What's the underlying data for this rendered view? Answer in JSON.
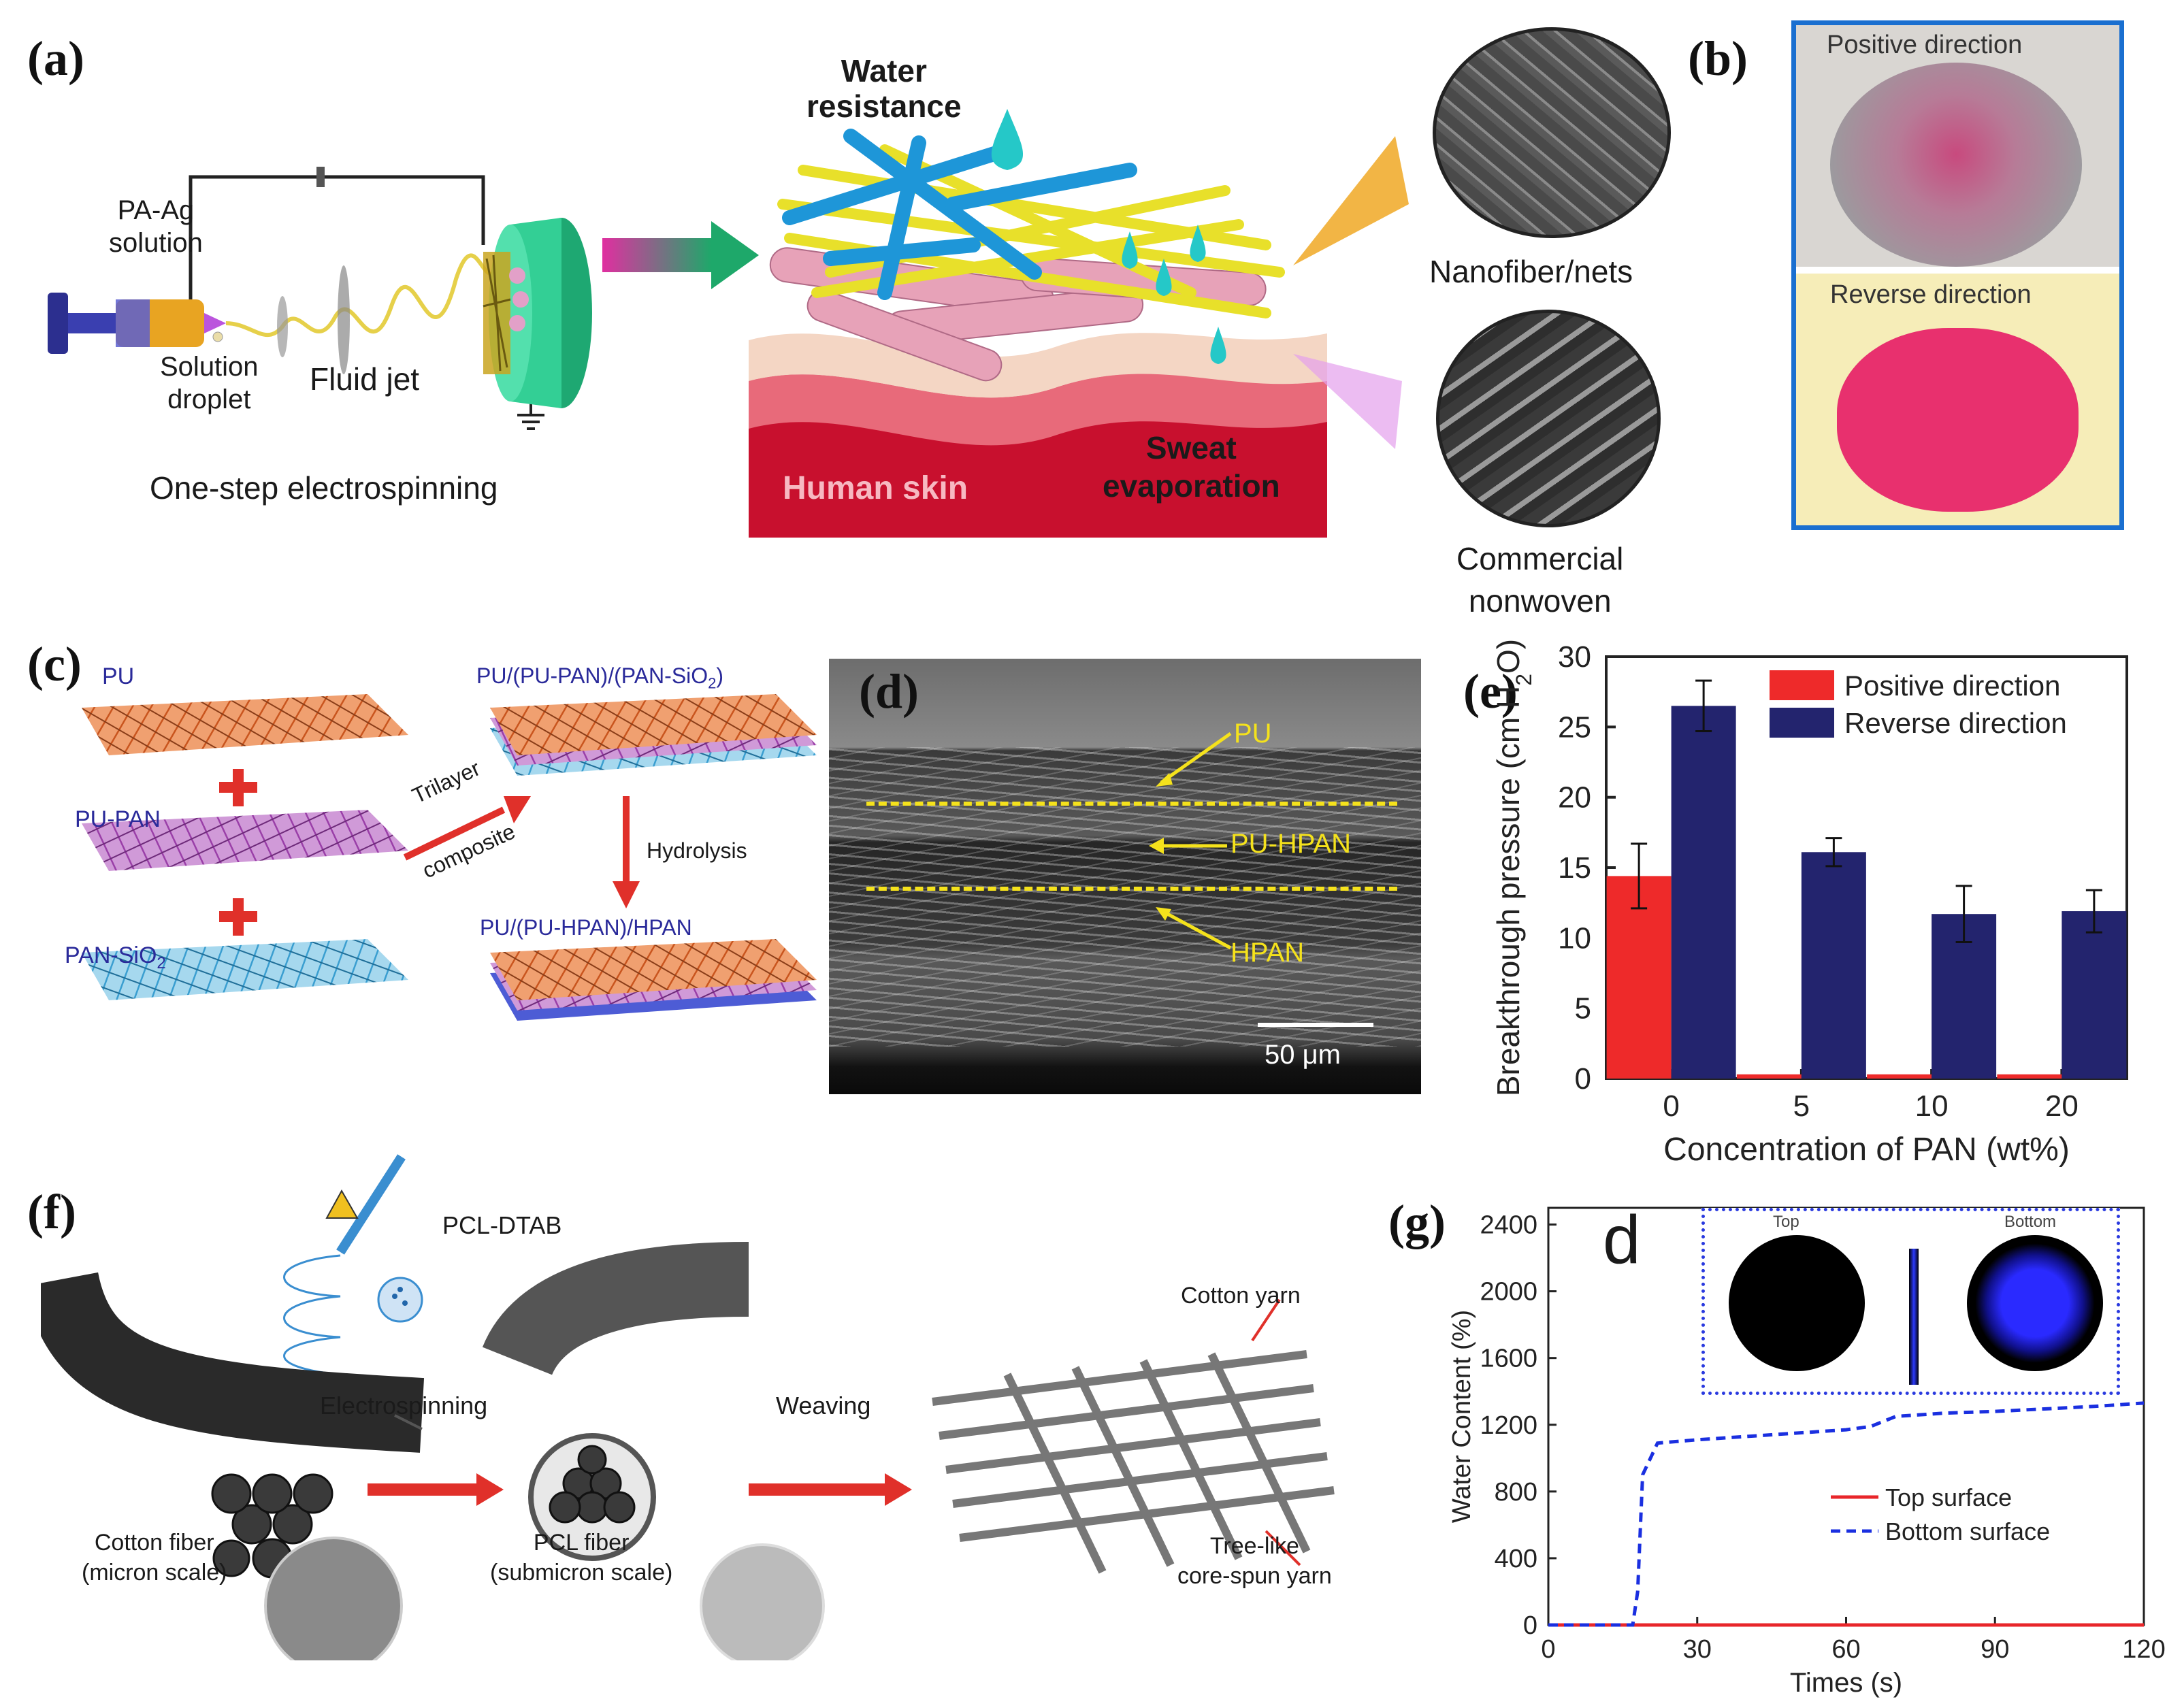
{
  "panel_a": {
    "label": "(a)",
    "syringe_solution": "PA-Ag\nsolution",
    "solution_droplet": "Solution\ndroplet",
    "fluid_jet": "Fluid jet",
    "process": "One-step electrospinning",
    "water_resistance": "Water\nresistance",
    "human_skin": "Human skin",
    "sweat_evaporation": "Sweat\nevaporation",
    "nanofiber_nets": "Nanofiber/nets",
    "commercial_nonwoven": "Commercial\nnonwoven"
  },
  "panel_b": {
    "label": "(b)",
    "positive": "Positive direction",
    "reverse": "Reverse direction"
  },
  "panel_c": {
    "label": "(c)",
    "pu": "PU",
    "pu_pan": "PU-PAN",
    "pan_sio2": "PAN-SiO",
    "pan_sio2_sub": "2",
    "trilayer": "Trilayer",
    "composite": "composite",
    "top_right": "PU/(PU-PAN)/(PAN-SiO",
    "top_right_sub": "2",
    "top_right_end": ")",
    "hydrolysis": "Hydrolysis",
    "bottom_right": "PU/(PU-HPAN)/HPAN"
  },
  "panel_d": {
    "label": "(d)",
    "layer_pu": "PU",
    "layer_pu_hpan": "PU-HPAN",
    "layer_hpan": "HPAN",
    "scale_bar": "50 μm"
  },
  "panel_f": {
    "label": "(f)",
    "pcl_dtab": "PCL-DTAB",
    "electrospinning": "Electrospinning",
    "weaving": "Weaving",
    "cotton_fiber": "Cotton fiber\n(micron scale)",
    "pcl_fiber": "PCL fiber\n(submicron scale)",
    "cotton_yarn": "Cotton yarn",
    "tree_like": "Tree-like\ncore-spun yarn"
  },
  "panel_g_inset": {
    "big_label": "d",
    "top": "Top",
    "bottom": "Bottom"
  },
  "chart_data": [
    {
      "id": "e",
      "panel_label": "(e)",
      "type": "bar",
      "categories": [
        "0",
        "5",
        "10",
        "20"
      ],
      "series": [
        {
          "name": "Positive direction",
          "color": "#ee2a2a",
          "values": [
            14.4,
            0.3,
            0.3,
            0.3
          ],
          "errors": [
            2.3,
            0,
            0,
            0
          ]
        },
        {
          "name": "Reverse direction",
          "color": "#23246e",
          "values": [
            26.5,
            16.1,
            11.7,
            11.9
          ],
          "errors": [
            1.8,
            1.0,
            2.0,
            1.5
          ]
        }
      ],
      "xlabel": "Concentration of PAN  (wt%)",
      "ylabel": "Breakthrough pressure (cm H",
      "ylabel_sub": "2",
      "ylabel_end": "O)",
      "ylim": [
        0,
        30
      ],
      "yticks": [
        "0",
        "5",
        "10",
        "15",
        "20",
        "25",
        "30"
      ],
      "legend": "top-right"
    },
    {
      "id": "g",
      "panel_label": "(g)",
      "type": "line",
      "series": [
        {
          "name": "Top surface",
          "color": "#e8262a",
          "style": "solid",
          "x": [
            0,
            120
          ],
          "y": [
            0,
            0
          ]
        },
        {
          "name": "Bottom surface",
          "color": "#1a2fe0",
          "style": "dashed",
          "x": [
            0,
            17,
            18,
            19,
            22,
            30,
            40,
            50,
            60,
            65,
            70,
            80,
            90,
            100,
            110,
            120
          ],
          "y": [
            0,
            0,
            200,
            900,
            1090,
            1110,
            1130,
            1150,
            1170,
            1190,
            1250,
            1270,
            1280,
            1295,
            1310,
            1330
          ]
        }
      ],
      "xlabel": "Times (s)",
      "ylabel": "Water Content (%)",
      "xlim": [
        0,
        120
      ],
      "ylim": [
        0,
        2500
      ],
      "xticks": [
        "0",
        "30",
        "60",
        "90",
        "120"
      ],
      "yticks": [
        "0",
        "400",
        "800",
        "1200",
        "1600",
        "2000",
        "2400"
      ],
      "legend": "bottom-right"
    }
  ]
}
